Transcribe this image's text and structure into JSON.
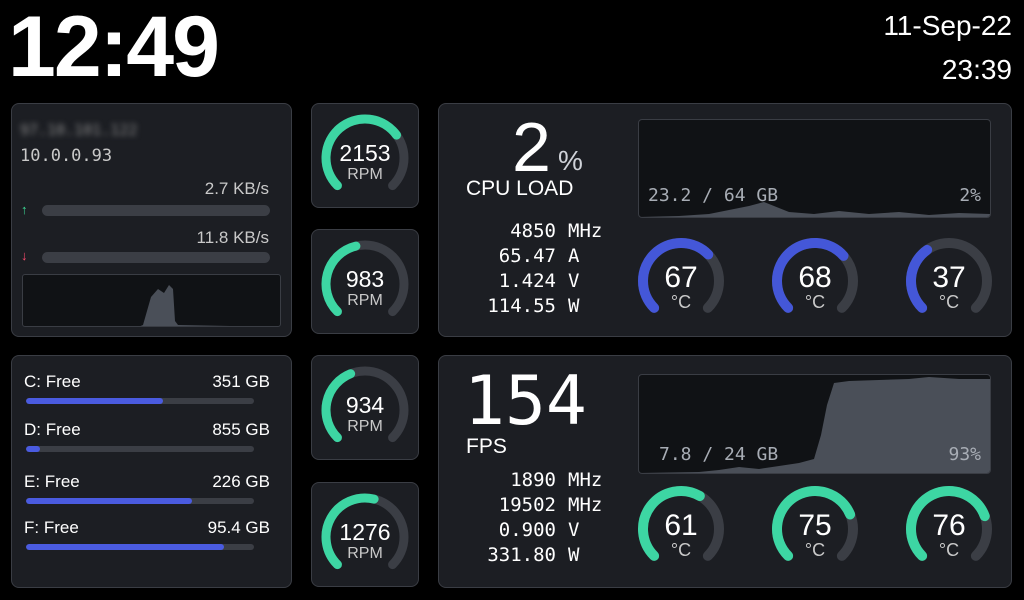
{
  "clock": {
    "time": "12:49",
    "date": "11-Sep-22",
    "time_secondary": "23:39"
  },
  "network": {
    "public_ip": "97.10.101.122",
    "local_ip": "10.0.0.93",
    "upload": "2.7 KB/s",
    "download": "11.8 KB/s",
    "upload_icon": "arrow-up-icon",
    "download_icon": "arrow-down-icon",
    "upload_color": "#3ddc97",
    "download_color": "#ff4b6e"
  },
  "drives": [
    {
      "label": "C: Free",
      "value": "351 GB",
      "fill": 0.6
    },
    {
      "label": "D: Free",
      "value": "855 GB",
      "fill": 0.06
    },
    {
      "label": "E: Free",
      "value": "226 GB",
      "fill": 0.73
    },
    {
      "label": "F: Free",
      "value": "95.4 GB",
      "fill": 0.87
    }
  ],
  "fans": [
    {
      "value": "2153",
      "unit": "RPM",
      "level": 0.7
    },
    {
      "value": "983",
      "unit": "RPM",
      "level": 0.45
    },
    {
      "value": "934",
      "unit": "RPM",
      "level": 0.42
    },
    {
      "value": "1276",
      "unit": "RPM",
      "level": 0.55
    }
  ],
  "cpu": {
    "load": "2",
    "load_unit": "%",
    "label": "CPU LOAD",
    "stats": [
      {
        "value": "4850",
        "unit": "MHz"
      },
      {
        "value": "65.47",
        "unit": "A"
      },
      {
        "value": "1.424",
        "unit": "V"
      },
      {
        "value": "114.55",
        "unit": "W"
      }
    ],
    "graph_memory": "23.2 / 64 GB",
    "graph_percent": "2%",
    "temps": [
      {
        "value": "67",
        "unit": "°C",
        "level": 0.67
      },
      {
        "value": "68",
        "unit": "°C",
        "level": 0.68
      },
      {
        "value": "37",
        "unit": "°C",
        "level": 0.37
      }
    ],
    "color": "#4457d8"
  },
  "gpu": {
    "fps": "154",
    "label": "FPS",
    "stats": [
      {
        "value": "1890",
        "unit": "MHz"
      },
      {
        "value": "19502",
        "unit": "MHz"
      },
      {
        "value": "0.900",
        "unit": "V"
      },
      {
        "value": "331.80",
        "unit": "W"
      }
    ],
    "graph_memory": "7.8 / 24 GB",
    "graph_percent": "93%",
    "temps": [
      {
        "value": "61",
        "unit": "°C",
        "level": 0.61
      },
      {
        "value": "75",
        "unit": "°C",
        "level": 0.75
      },
      {
        "value": "76",
        "unit": "°C",
        "level": 0.76
      }
    ],
    "color": "#3dd6a3"
  }
}
